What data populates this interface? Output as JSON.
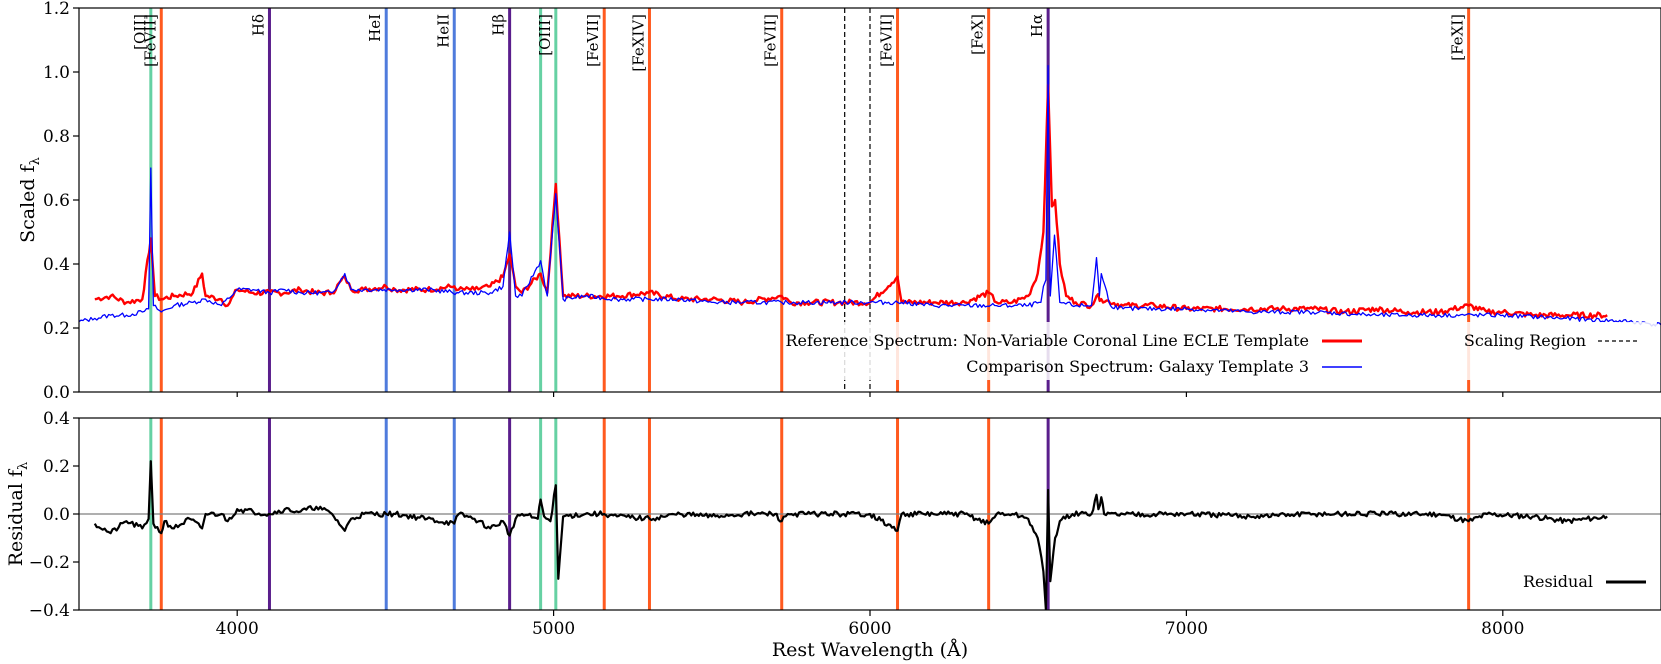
{
  "chart_data": [
    {
      "type": "line",
      "panel": "top",
      "ylabel": "Scaled f",
      "ylabel_sub": "λ",
      "xlim": [
        3500,
        8500
      ],
      "ylim": [
        0.0,
        1.2
      ],
      "xticks": [
        4000,
        5000,
        6000,
        7000,
        8000
      ],
      "yticks": [
        "0.0",
        "0.2",
        "0.4",
        "0.6",
        "0.8",
        "1.0",
        "1.2"
      ],
      "ytick_values": [
        0.0,
        0.2,
        0.4,
        0.6,
        0.8,
        1.0,
        1.2
      ],
      "scaling_region": [
        5920,
        6000
      ],
      "series": [
        {
          "name": "Reference Spectrum: Non-Variable Coronal Line ECLE Template",
          "color": "#ff0000",
          "x": [
            3550,
            3600,
            3650,
            3700,
            3727,
            3740,
            3760,
            3800,
            3860,
            3889,
            3900,
            3950,
            3970,
            4000,
            4050,
            4102,
            4150,
            4200,
            4250,
            4300,
            4340,
            4360,
            4400,
            4471,
            4500,
            4600,
            4686,
            4700,
            4750,
            4800,
            4840,
            4861,
            4880,
            4900,
            4959,
            4980,
            5007,
            5030,
            5100,
            5200,
            5300,
            5400,
            5500,
            5600,
            5721,
            5750,
            5800,
            5900,
            6000,
            6087,
            6100,
            6200,
            6300,
            6375,
            6400,
            6450,
            6500,
            6530,
            6548,
            6563,
            6575,
            6585,
            6600,
            6620,
            6650,
            6700,
            6716,
            6731,
            6800,
            6900,
            7000,
            7100,
            7200,
            7300,
            7400,
            7500,
            7600,
            7700,
            7800,
            7892,
            7950,
            8000,
            8100,
            8200,
            8330
          ],
          "y": [
            0.29,
            0.3,
            0.28,
            0.29,
            0.48,
            0.3,
            0.29,
            0.3,
            0.31,
            0.37,
            0.3,
            0.29,
            0.27,
            0.32,
            0.31,
            0.31,
            0.31,
            0.32,
            0.31,
            0.31,
            0.36,
            0.32,
            0.32,
            0.33,
            0.32,
            0.32,
            0.33,
            0.32,
            0.32,
            0.33,
            0.36,
            0.43,
            0.33,
            0.31,
            0.37,
            0.31,
            0.65,
            0.3,
            0.3,
            0.3,
            0.31,
            0.29,
            0.29,
            0.28,
            0.3,
            0.28,
            0.28,
            0.28,
            0.28,
            0.36,
            0.28,
            0.28,
            0.28,
            0.31,
            0.28,
            0.28,
            0.3,
            0.37,
            0.5,
            0.96,
            0.58,
            0.6,
            0.4,
            0.3,
            0.28,
            0.27,
            0.3,
            0.29,
            0.27,
            0.27,
            0.26,
            0.26,
            0.26,
            0.26,
            0.26,
            0.25,
            0.26,
            0.25,
            0.25,
            0.27,
            0.25,
            0.25,
            0.24,
            0.24,
            0.24
          ]
        },
        {
          "name": "Comparison Spectrum: Galaxy Template 3",
          "color": "#0000ff",
          "x": [
            3500,
            3550,
            3600,
            3650,
            3700,
            3720,
            3727,
            3735,
            3760,
            3800,
            3860,
            3900,
            3950,
            4000,
            4050,
            4102,
            4150,
            4200,
            4300,
            4340,
            4360,
            4400,
            4500,
            4600,
            4700,
            4800,
            4840,
            4861,
            4880,
            4900,
            4959,
            4980,
            5007,
            5030,
            5100,
            5200,
            5300,
            5400,
            5500,
            5600,
            5721,
            5800,
            5900,
            6000,
            6100,
            6200,
            6300,
            6400,
            6500,
            6540,
            6548,
            6556,
            6563,
            6570,
            6583,
            6600,
            6650,
            6700,
            6716,
            6725,
            6731,
            6760,
            6800,
            7000,
            7200,
            7400,
            7600,
            7800,
            8000,
            8200,
            8400,
            8500
          ],
          "y": [
            0.22,
            0.23,
            0.24,
            0.24,
            0.25,
            0.26,
            0.7,
            0.27,
            0.25,
            0.27,
            0.28,
            0.29,
            0.27,
            0.32,
            0.32,
            0.31,
            0.32,
            0.31,
            0.31,
            0.37,
            0.32,
            0.32,
            0.32,
            0.32,
            0.31,
            0.31,
            0.33,
            0.5,
            0.3,
            0.3,
            0.41,
            0.3,
            0.62,
            0.29,
            0.3,
            0.29,
            0.29,
            0.29,
            0.28,
            0.28,
            0.28,
            0.28,
            0.28,
            0.28,
            0.28,
            0.27,
            0.27,
            0.27,
            0.27,
            0.28,
            0.33,
            0.35,
            1.02,
            0.3,
            0.49,
            0.28,
            0.27,
            0.27,
            0.42,
            0.3,
            0.37,
            0.27,
            0.26,
            0.26,
            0.25,
            0.25,
            0.24,
            0.24,
            0.24,
            0.23,
            0.22,
            0.21
          ]
        }
      ],
      "legend": {
        "position": "lower-right",
        "entries": [
          {
            "label": "Reference Spectrum: Non-Variable Coronal Line ECLE Template",
            "color": "#ff0000",
            "style": "solid"
          },
          {
            "label": "Scaling Region",
            "color": "#000000",
            "style": "dashed"
          },
          {
            "label": "Comparison Spectrum: Galaxy Template 3",
            "color": "#0000ff",
            "style": "solid"
          }
        ]
      },
      "line_markers": [
        {
          "wavelength": 3727,
          "label": "[OII]",
          "color": "#66d1a3"
        },
        {
          "wavelength": 3760,
          "label": "[FeVII]",
          "color": "#ff5a1f"
        },
        {
          "wavelength": 4102,
          "label": "Hδ",
          "color": "#5a1e8c"
        },
        {
          "wavelength": 4471,
          "label": "HeI",
          "color": "#4f7bdc"
        },
        {
          "wavelength": 4686,
          "label": "HeII",
          "color": "#4f7bdc"
        },
        {
          "wavelength": 4861,
          "label": "Hβ",
          "color": "#5a1e8c"
        },
        {
          "wavelength": 4959,
          "label": "",
          "color": "#66d1a3"
        },
        {
          "wavelength": 5007,
          "label": "[OIII]",
          "color": "#66d1a3"
        },
        {
          "wavelength": 5160,
          "label": "[FeVII]",
          "color": "#ff5a1f"
        },
        {
          "wavelength": 5303,
          "label": "[FeXIV]",
          "color": "#ff5a1f"
        },
        {
          "wavelength": 5721,
          "label": "[FeVII]",
          "color": "#ff5a1f"
        },
        {
          "wavelength": 6087,
          "label": "[FeVII]",
          "color": "#ff5a1f"
        },
        {
          "wavelength": 6375,
          "label": "[FeX]",
          "color": "#ff5a1f"
        },
        {
          "wavelength": 6563,
          "label": "Hα",
          "color": "#5a1e8c"
        },
        {
          "wavelength": 7892,
          "label": "[FeXI]",
          "color": "#ff5a1f"
        }
      ]
    },
    {
      "type": "line",
      "panel": "bottom",
      "ylabel": "Residual f",
      "ylabel_sub": "λ",
      "xlabel": "Rest Wavelength (Å)",
      "xlim": [
        3500,
        8500
      ],
      "ylim": [
        -0.4,
        0.4
      ],
      "xticks": [
        4000,
        5000,
        6000,
        7000,
        8000
      ],
      "yticks": [
        "−0.4",
        "−0.2",
        "0.0",
        "0.2",
        "0.4"
      ],
      "ytick_values": [
        -0.4,
        -0.2,
        0.0,
        0.2,
        0.4
      ],
      "series": [
        {
          "name": "Residual",
          "color": "#000000",
          "x": [
            3550,
            3600,
            3650,
            3700,
            3720,
            3727,
            3735,
            3760,
            3770,
            3800,
            3850,
            3889,
            3900,
            3950,
            3970,
            4000,
            4050,
            4100,
            4150,
            4200,
            4250,
            4300,
            4340,
            4360,
            4400,
            4471,
            4500,
            4600,
            4686,
            4700,
            4750,
            4800,
            4840,
            4861,
            4880,
            4900,
            4950,
            4959,
            4970,
            4990,
            5007,
            5015,
            5030,
            5100,
            5160,
            5200,
            5303,
            5400,
            5500,
            5600,
            5700,
            5721,
            5740,
            5800,
            5900,
            6000,
            6087,
            6100,
            6200,
            6300,
            6375,
            6400,
            6450,
            6500,
            6530,
            6548,
            6556,
            6563,
            6570,
            6585,
            6600,
            6640,
            6700,
            6716,
            6722,
            6731,
            6740,
            6800,
            7000,
            7200,
            7400,
            7600,
            7800,
            7892,
            7950,
            8100,
            8200,
            8330
          ],
          "y": [
            -0.04,
            -0.08,
            -0.03,
            -0.06,
            -0.02,
            0.22,
            -0.04,
            -0.08,
            -0.03,
            -0.06,
            -0.02,
            -0.06,
            0.0,
            0.0,
            -0.03,
            0.02,
            0.01,
            0.0,
            0.02,
            0.01,
            0.03,
            0.0,
            -0.07,
            -0.02,
            0.0,
            0.0,
            0.0,
            -0.02,
            -0.04,
            0.0,
            -0.02,
            -0.06,
            -0.03,
            -0.09,
            -0.02,
            0.0,
            -0.02,
            0.06,
            -0.01,
            -0.03,
            0.12,
            -0.27,
            -0.01,
            0.0,
            0.0,
            -0.01,
            -0.02,
            0.0,
            -0.01,
            0.0,
            0.0,
            -0.03,
            0.0,
            0.0,
            0.0,
            0.0,
            -0.07,
            0.0,
            0.0,
            0.0,
            -0.04,
            0.0,
            0.0,
            -0.02,
            -0.1,
            -0.24,
            -0.4,
            0.1,
            -0.28,
            -0.1,
            -0.03,
            0.0,
            0.0,
            0.08,
            0.02,
            0.07,
            0.0,
            0.0,
            0.0,
            -0.01,
            0.0,
            0.0,
            0.0,
            -0.03,
            0.0,
            -0.01,
            -0.03,
            -0.01
          ]
        }
      ],
      "legend": {
        "position": "lower-right",
        "entries": [
          {
            "label": "Residual",
            "color": "#000000",
            "style": "solid"
          }
        ]
      }
    }
  ]
}
